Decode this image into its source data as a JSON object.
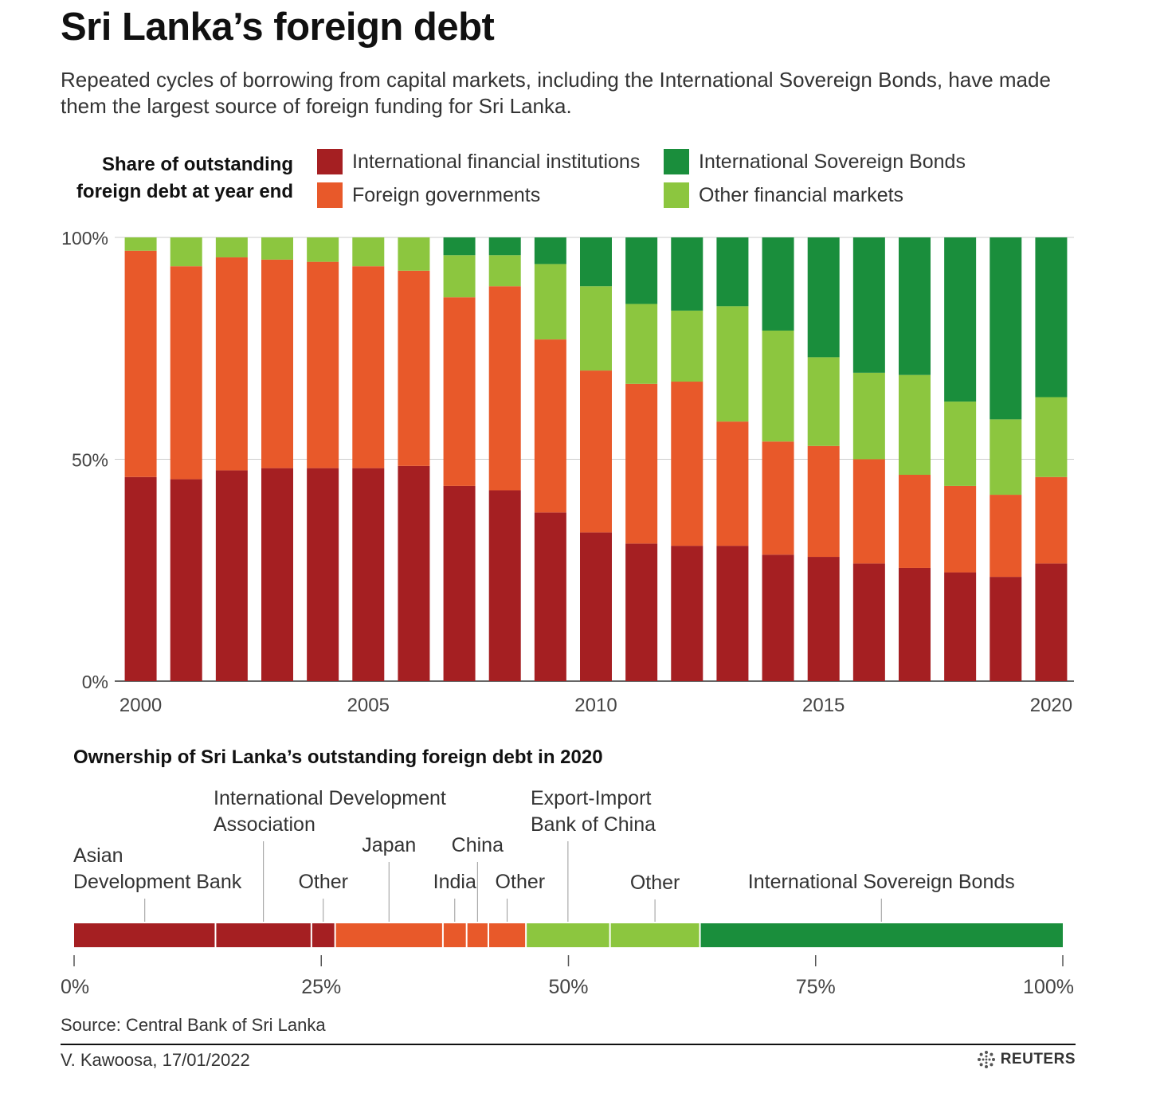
{
  "header": {
    "title": "Sri Lanka’s foreign debt",
    "subtitle": "Repeated cycles of borrowing from capital markets, including the International Sovereign Bonds, have made them the largest source of foreign funding for Sri Lanka."
  },
  "chart_data": [
    {
      "type": "bar",
      "stacked": true,
      "title": "Share of outstanding foreign debt at year end",
      "x": [
        2000,
        2001,
        2002,
        2003,
        2004,
        2005,
        2006,
        2007,
        2008,
        2009,
        2010,
        2011,
        2012,
        2013,
        2014,
        2015,
        2016,
        2017,
        2018,
        2019,
        2020
      ],
      "x_tick_labels": [
        "2000",
        "2005",
        "2010",
        "2015",
        "2020"
      ],
      "x_tick_values": [
        2000,
        2005,
        2010,
        2015,
        2020
      ],
      "y_tick_labels": [
        "0%",
        "50%",
        "100%"
      ],
      "y_tick_values": [
        0,
        50,
        100
      ],
      "ylim": [
        0,
        100
      ],
      "grid": true,
      "legend_position": "top",
      "series": [
        {
          "name": "International financial institutions",
          "color": "#a51f22",
          "values": [
            46,
            45.5,
            47.5,
            48,
            48,
            48,
            48.5,
            44,
            43,
            38,
            33.5,
            31,
            30.5,
            30.5,
            28.5,
            28,
            26.5,
            25.5,
            24.5,
            23.5,
            26.5
          ]
        },
        {
          "name": "Foreign governments",
          "color": "#e8592a",
          "values": [
            51,
            48,
            48,
            47,
            46.5,
            45.5,
            44,
            42.5,
            46,
            39,
            36.5,
            36,
            37,
            28,
            25.5,
            25,
            23.5,
            21,
            19.5,
            18.5,
            19.5
          ]
        },
        {
          "name": "Other financial markets",
          "color": "#8cc63f",
          "values": [
            3,
            6.5,
            4.5,
            5,
            5.5,
            6.5,
            7.5,
            9.5,
            7,
            17,
            19,
            18,
            16,
            26,
            25,
            20,
            19.5,
            22.5,
            19,
            17,
            18
          ]
        },
        {
          "name": "International Sovereign Bonds",
          "color": "#1a8e3c",
          "values": [
            0,
            0,
            0,
            0,
            0,
            0,
            0,
            4,
            4,
            6,
            11,
            15,
            16.5,
            15.5,
            21,
            27,
            30.5,
            31,
            37,
            41,
            36
          ]
        }
      ]
    },
    {
      "type": "bar",
      "orientation": "horizontal",
      "stacked": true,
      "title": "Ownership of Sri Lanka’s outstanding foreign debt in 2020",
      "x_tick_labels": [
        "0%",
        "25%",
        "50%",
        "75%",
        "100%"
      ],
      "x_tick_values": [
        0,
        25,
        50,
        75,
        100
      ],
      "xlim": [
        0,
        100
      ],
      "segments": [
        {
          "label": "Asian Development Bank",
          "value": 14.3,
          "color": "#a51f22"
        },
        {
          "label": "International Development Association",
          "value": 9.7,
          "color": "#a51f22"
        },
        {
          "label": "Other",
          "value": 2.4,
          "color": "#a51f22"
        },
        {
          "label": "Japan",
          "value": 10.9,
          "color": "#e8592a"
        },
        {
          "label": "India",
          "value": 2.4,
          "color": "#e8592a"
        },
        {
          "label": "China",
          "value": 2.2,
          "color": "#e8592a"
        },
        {
          "label": "Other",
          "value": 3.8,
          "color": "#e8592a"
        },
        {
          "label": "Export-Import Bank of China",
          "value": 8.5,
          "color": "#8cc63f"
        },
        {
          "label": "Other",
          "value": 9.1,
          "color": "#8cc63f"
        },
        {
          "label": "International Sovereign Bonds",
          "value": 36.7,
          "color": "#1a8e3c"
        }
      ]
    }
  ],
  "footer": {
    "source": "Source: Central Bank of Sri Lanka",
    "byline": "V. Kawoosa, 17/01/2022",
    "logo_text": "REUTERS"
  }
}
